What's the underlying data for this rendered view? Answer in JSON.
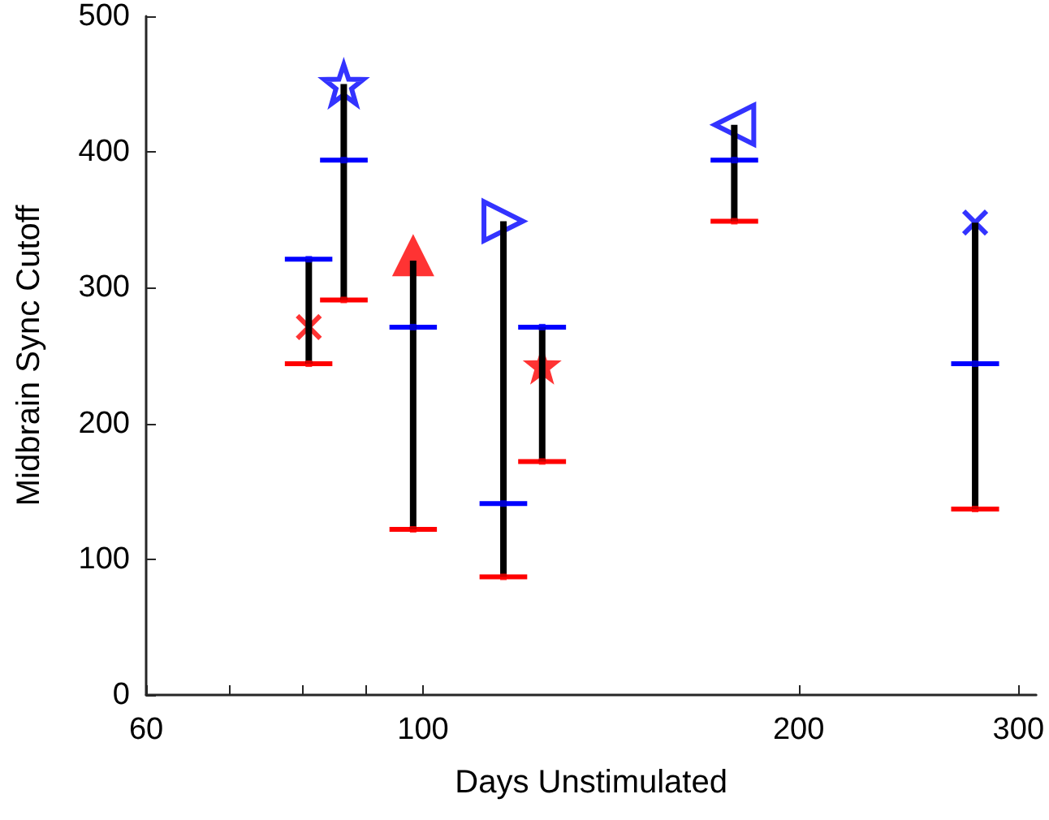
{
  "chart_data": {
    "type": "scatter",
    "xlabel": "Days Unstimulated",
    "ylabel": "Midbrain Sync Cutoff",
    "log": "x",
    "grid": false,
    "xlim": [
      60,
      310
    ],
    "xticks": [
      60,
      {
        "value": 70,
        "label": null
      },
      {
        "value": 80,
        "label": null
      },
      {
        "value": 90,
        "label": null
      },
      100,
      200,
      300
    ],
    "ylim": [
      0,
      500
    ],
    "yticks": [
      0,
      100,
      200,
      300,
      400,
      500
    ],
    "series": [
      {
        "color": "#ff0000",
        "marker": "square",
        "x": [
          81,
          86.4,
          98.2,
          116,
          124.6,
          177.6,
          277
        ],
        "values": [
          244,
          291,
          122,
          87,
          172,
          349,
          137
        ],
        "xerrors": [
          [
            77.5,
            84.6
          ],
          [
            82.7,
            90.3
          ],
          [
            94,
            102.6
          ],
          [
            111,
            121.2
          ],
          [
            119.2,
            130.2
          ],
          [
            170,
            185.6
          ],
          [
            265,
            289.5
          ]
        ]
      },
      {
        "color": "#0000ff",
        "marker": "square",
        "x": [
          81,
          86.4,
          98.2,
          116,
          124.6,
          177.6,
          277
        ],
        "values": [
          321,
          394,
          271,
          141,
          271,
          394,
          244
        ],
        "xerrors": [
          [
            77.5,
            84.6
          ],
          [
            82.7,
            90.3
          ],
          [
            94,
            102.6
          ],
          [
            111,
            121.2
          ],
          [
            119.2,
            130.2
          ],
          [
            170,
            185.6
          ],
          [
            265,
            289.5
          ]
        ]
      },
      {
        "color": "#ff0000",
        "marker": "cross",
        "x": [
          81
        ],
        "values": [
          271
        ]
      },
      {
        "color": "#0000ff",
        "marker": "star-open",
        "x": [
          86.4
        ],
        "values": [
          450
        ]
      },
      {
        "color": "#ff0000",
        "marker": "triangle",
        "x": [
          98.2
        ],
        "values": [
          324
        ]
      },
      {
        "color": "#0000ff",
        "marker": "triangle-right-open",
        "x": [
          116
        ],
        "values": [
          349
        ]
      },
      {
        "color": "#ff0000",
        "marker": "star",
        "x": [
          124.6
        ],
        "values": [
          243
        ]
      },
      {
        "color": "#0000ff",
        "marker": "triangle-left-open",
        "x": [
          177.6
        ],
        "values": [
          420
        ]
      },
      {
        "color": "#0000ff",
        "marker": "cross",
        "x": [
          277
        ],
        "values": [
          348
        ]
      },
      {
        "type": "bar",
        "color": "#000000",
        "x": [
          81,
          86.4,
          98.2,
          116,
          124.6,
          177.6,
          277
        ],
        "base": [
          244,
          291,
          122,
          87,
          172,
          349,
          137
        ],
        "values": [
          77,
          159,
          198,
          262,
          99,
          71,
          211
        ]
      }
    ]
  }
}
